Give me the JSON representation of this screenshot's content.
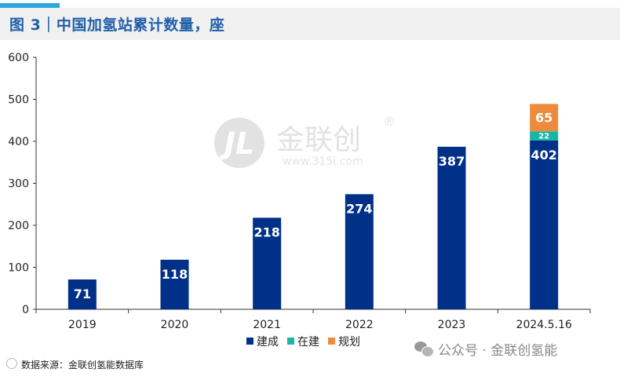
{
  "header": {
    "title": "图 3｜中国加氢站累计数量，座"
  },
  "watermark": {
    "brand": "金联创",
    "registered": "®",
    "url": "www.315i.com"
  },
  "footer": {
    "source": "数据来源：金联创氢能数据库",
    "wechat_label": "公众号 · 金联创氢能"
  },
  "chart_data": {
    "type": "bar",
    "stacked": true,
    "categories": [
      "2019",
      "2020",
      "2021",
      "2022",
      "2023",
      "2024.5.16"
    ],
    "series": [
      {
        "name": "建成",
        "values": [
          71,
          118,
          218,
          274,
          387,
          402
        ],
        "color": "#003087"
      },
      {
        "name": "在建",
        "values": [
          0,
          0,
          0,
          0,
          0,
          22
        ],
        "color": "#1ab5a8"
      },
      {
        "name": "规划",
        "values": [
          0,
          0,
          0,
          0,
          0,
          65
        ],
        "color": "#ee8a3b"
      }
    ],
    "ylim": [
      0,
      600
    ],
    "yticks": [
      0,
      100,
      200,
      300,
      400,
      500,
      600
    ],
    "grid": false,
    "legend_position": "bottom"
  }
}
